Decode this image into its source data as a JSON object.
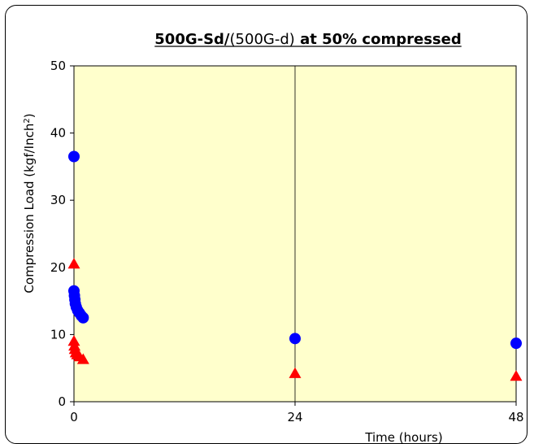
{
  "chart_data": {
    "type": "scatter",
    "title_parts": {
      "bold": "500G-Sd/",
      "normal": "(500G-d)",
      "bold2": " at 50% compressed"
    },
    "xlabel": "Time (hours)",
    "ylabel": "Compression Load (kgf/Inch",
    "ylabel_sup": "2",
    "ylabel_close": ")",
    "xlim": [
      0,
      48
    ],
    "ylim": [
      0,
      50
    ],
    "xticks": [
      0,
      24,
      48
    ],
    "yticks": [
      0,
      10,
      20,
      30,
      40,
      50
    ],
    "grid": "vertical",
    "plot_background": "#FFFFCC",
    "series": [
      {
        "marker": "circle",
        "color": "#0000FF",
        "points": [
          [
            0,
            36.5
          ],
          [
            0,
            16.5
          ],
          [
            0.05,
            15.8
          ],
          [
            0.1,
            15.2
          ],
          [
            0.15,
            14.6
          ],
          [
            0.25,
            14.1
          ],
          [
            0.4,
            13.6
          ],
          [
            0.6,
            13.2
          ],
          [
            0.8,
            12.8
          ],
          [
            1.0,
            12.5
          ],
          [
            24,
            9.4
          ],
          [
            48,
            8.7
          ]
        ]
      },
      {
        "marker": "triangle",
        "color": "#FF0000",
        "points": [
          [
            0,
            20.5
          ],
          [
            0,
            9.0
          ],
          [
            0.05,
            8.3
          ],
          [
            0.1,
            7.8
          ],
          [
            0.2,
            7.3
          ],
          [
            0.35,
            7.0
          ],
          [
            0.6,
            6.7
          ],
          [
            1.0,
            6.3
          ],
          [
            24,
            4.2
          ],
          [
            48,
            3.8
          ]
        ]
      }
    ]
  }
}
